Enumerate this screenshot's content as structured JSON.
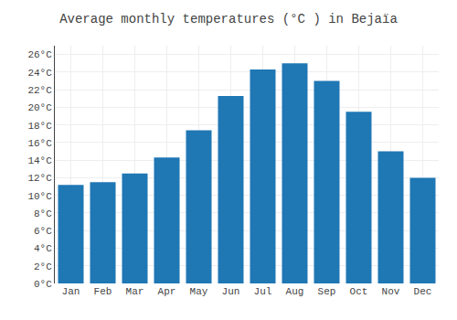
{
  "chart_data": {
    "type": "bar",
    "title": "Average monthly temperatures (°C ) in Bejaïа",
    "categories": [
      "Jan",
      "Feb",
      "Mar",
      "Apr",
      "May",
      "Jun",
      "Jul",
      "Aug",
      "Sep",
      "Oct",
      "Nov",
      "Dec"
    ],
    "values": [
      11.2,
      11.5,
      12.5,
      14.3,
      17.4,
      21.3,
      24.3,
      25.0,
      23.0,
      19.5,
      15.0,
      12.0
    ],
    "ylim": [
      0,
      27
    ],
    "yticks": [
      {
        "value": 0,
        "label": "0°C"
      },
      {
        "value": 2,
        "label": "2°C"
      },
      {
        "value": 4,
        "label": "4°C"
      },
      {
        "value": 6,
        "label": "6°C"
      },
      {
        "value": 8,
        "label": "8°C"
      },
      {
        "value": 10,
        "label": "10°C"
      },
      {
        "value": 12,
        "label": "12°C"
      },
      {
        "value": 14,
        "label": "14°C"
      },
      {
        "value": 16,
        "label": "16°C"
      },
      {
        "value": 18,
        "label": "18°C"
      },
      {
        "value": 20,
        "label": "20°C"
      },
      {
        "value": 22,
        "label": "22°C"
      },
      {
        "value": 24,
        "label": "24°C"
      },
      {
        "value": 26,
        "label": "26°C"
      }
    ],
    "grid": true
  }
}
